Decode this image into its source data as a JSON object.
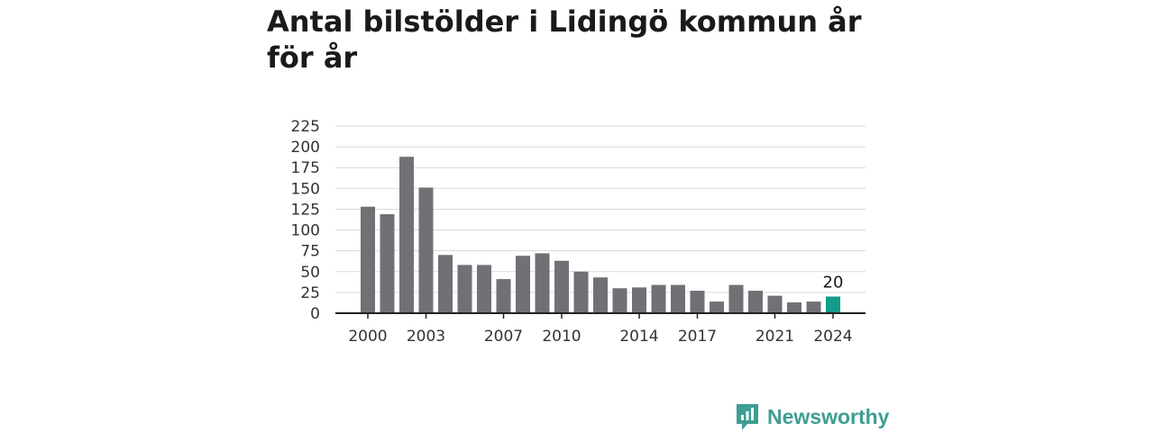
{
  "title": "Antal bilstölder i Lidingö kommun år för år",
  "brand": {
    "name": "Newsworthy",
    "icon": "bar-chart-speech-bubble-icon",
    "color": "#3e9e93"
  },
  "colors": {
    "bar": "#717075",
    "highlight": "#109d8a",
    "grid": "#d9d9d9",
    "axis": "#222222"
  },
  "chart_data": {
    "type": "bar",
    "title": "Antal bilstölder i Lidingö kommun år för år",
    "xlabel": "",
    "ylabel": "",
    "categories": [
      2000,
      2001,
      2002,
      2003,
      2004,
      2005,
      2006,
      2007,
      2008,
      2009,
      2010,
      2011,
      2012,
      2013,
      2014,
      2015,
      2016,
      2017,
      2018,
      2019,
      2020,
      2021,
      2022,
      2023,
      2024
    ],
    "values": [
      128,
      119,
      188,
      151,
      70,
      58,
      58,
      41,
      69,
      72,
      63,
      50,
      43,
      30,
      31,
      34,
      34,
      27,
      14,
      34,
      27,
      21,
      13,
      14,
      20
    ],
    "ylim": [
      0,
      225
    ],
    "yticks": [
      0,
      25,
      50,
      75,
      100,
      125,
      150,
      175,
      200,
      225
    ],
    "xtick_labels": [
      "2000",
      "2003",
      "2007",
      "2010",
      "2014",
      "2017",
      "2021",
      "2024"
    ],
    "highlight_category": 2024,
    "data_labels": [
      {
        "category": 2024,
        "text": "20"
      }
    ],
    "grid": true,
    "legend": "none"
  }
}
